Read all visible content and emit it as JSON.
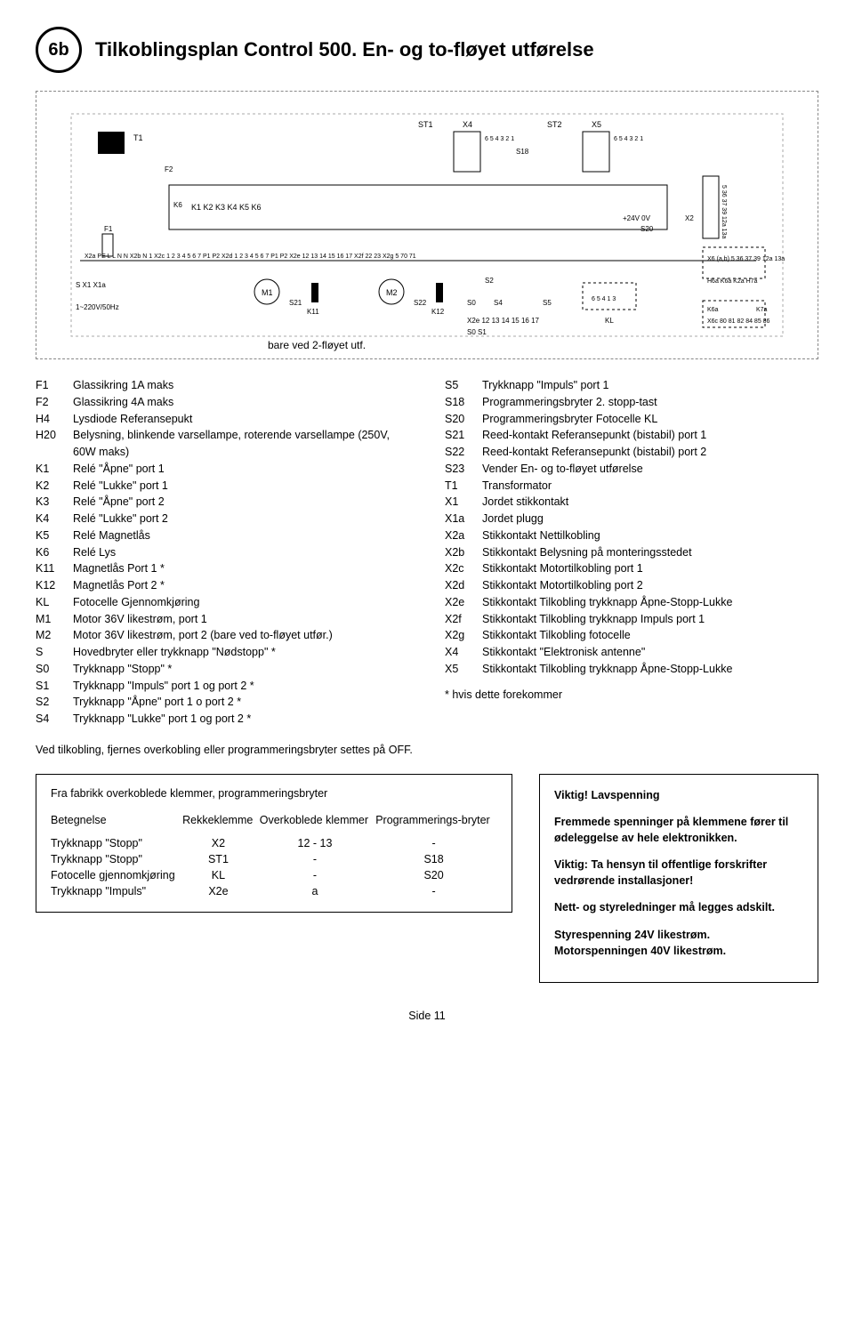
{
  "badge": "6b",
  "title": "Tilkoblingsplan Control 500. En- og to-fløyet utførelse",
  "diagramCaption": "bare ved 2-fløyet utf.",
  "legendLeft": [
    {
      "k": "F1",
      "v": "Glassikring 1A maks"
    },
    {
      "k": "F2",
      "v": "Glassikring 4A maks"
    },
    {
      "k": "H4",
      "v": "Lysdiode Referansepukt"
    },
    {
      "k": "H20",
      "v": "Belysning, blinkende varsellampe, roterende varsellampe (250V, 60W maks)"
    },
    {
      "k": "K1",
      "v": "Relé \"Åpne\" port 1"
    },
    {
      "k": "K2",
      "v": "Relé \"Lukke\" port 1"
    },
    {
      "k": "K3",
      "v": "Relé \"Åpne\" port 2"
    },
    {
      "k": "K4",
      "v": "Relé \"Lukke\" port 2"
    },
    {
      "k": "K5",
      "v": "Relé Magnetlås"
    },
    {
      "k": "K6",
      "v": "Relé Lys"
    },
    {
      "k": "K11",
      "v": "Magnetlås Port 1  *"
    },
    {
      "k": "K12",
      "v": "Magnetlås Port 2  *"
    },
    {
      "k": "KL",
      "v": "Fotocelle Gjennomkjøring"
    },
    {
      "k": "M1",
      "v": "Motor 36V likestrøm, port 1"
    },
    {
      "k": "M2",
      "v": "Motor 36V likestrøm, port 2 (bare ved to-fløyet utfør.)"
    },
    {
      "k": "S",
      "v": "Hovedbryter eller trykknapp \"Nødstopp\"  *"
    },
    {
      "k": "S0",
      "v": "Trykknapp \"Stopp\"  *"
    },
    {
      "k": "S1",
      "v": "Trykknapp \"Impuls\" port 1 og port 2  *"
    },
    {
      "k": "S2",
      "v": "Trykknapp \"Åpne\" port 1 o port 2  *"
    },
    {
      "k": "S4",
      "v": "Trykknapp \"Lukke\" port 1 og port 2  *"
    }
  ],
  "legendRight": [
    {
      "k": "S5",
      "v": "Trykknapp \"Impuls\" port 1"
    },
    {
      "k": "S18",
      "v": "Programmeringsbryter  2. stopp-tast"
    },
    {
      "k": "S20",
      "v": "Programmeringsbryter Fotocelle KL"
    },
    {
      "k": "S21",
      "v": "Reed-kontakt Referansepunkt (bistabil) port 1"
    },
    {
      "k": "S22",
      "v": "Reed-kontakt Referansepunkt (bistabil) port 2"
    },
    {
      "k": "S23",
      "v": "Vender En- og to-fløyet utførelse"
    },
    {
      "k": "T1",
      "v": "Transformator"
    },
    {
      "k": "X1",
      "v": "Jordet stikkontakt"
    },
    {
      "k": "X1a",
      "v": "Jordet plugg"
    },
    {
      "k": "X2a",
      "v": "Stikkontakt Nettilkobling"
    },
    {
      "k": "X2b",
      "v": "Stikkontakt Belysning på monteringsstedet"
    },
    {
      "k": "X2c",
      "v": "Stikkontakt Motortilkobling port 1"
    },
    {
      "k": "X2d",
      "v": "Stikkontakt Motortilkobling port 2"
    },
    {
      "k": "X2e",
      "v": "Stikkontakt Tilkobling trykknapp Åpne-Stopp-Lukke"
    },
    {
      "k": "X2f",
      "v": "Stikkontakt Tilkobling trykknapp Impuls port 1"
    },
    {
      "k": "X2g",
      "v": "Stikkontakt Tilkobling fotocelle"
    },
    {
      "k": "X4",
      "v": "Stikkontakt \"Elektronisk antenne\""
    },
    {
      "k": "X5",
      "v": "Stikkontakt Tilkobling trykknapp Åpne-Stopp-Lukke"
    }
  ],
  "legendStar": "* hvis dette forekommer",
  "noteLine": "Ved tilkobling, fjernes overkobling eller programmeringsbryter settes på OFF.",
  "tableTitle": "Fra fabrikk overkoblede klemmer, programmeringsbryter",
  "tableHeaders": {
    "c1": "Betegnelse",
    "c2": "Rekkeklemme",
    "c3": "Overkoblede klemmer",
    "c4": "Programmerings-bryter"
  },
  "tableRows": [
    {
      "c1": "Trykknapp \"Stopp\"",
      "c2": "X2",
      "c3": "12 - 13",
      "c4": "-"
    },
    {
      "c1": "Trykknapp \"Stopp\"",
      "c2": "ST1",
      "c3": "-",
      "c4": "S18"
    },
    {
      "c1": "Fotocelle gjennomkjøring",
      "c2": "KL",
      "c3": "-",
      "c4": "S20"
    },
    {
      "c1": "Trykknapp \"Impuls\"",
      "c2": "X2e",
      "c3": "a",
      "c4": "-"
    }
  ],
  "infobox": {
    "h": "Viktig! Lavspenning",
    "p1": "Fremmede spenninger på klemmene fører til ødeleggelse av hele elektronikken.",
    "p2": "Viktig: Ta hensyn til offentlige forskrifter vedrørende installasjoner!",
    "p3": "Nett- og styreledninger må legges adskilt.",
    "p4": "Styrespenning 24V likestrøm. Motorspenningen 40V likestrøm."
  },
  "pageNum": "Side 11"
}
